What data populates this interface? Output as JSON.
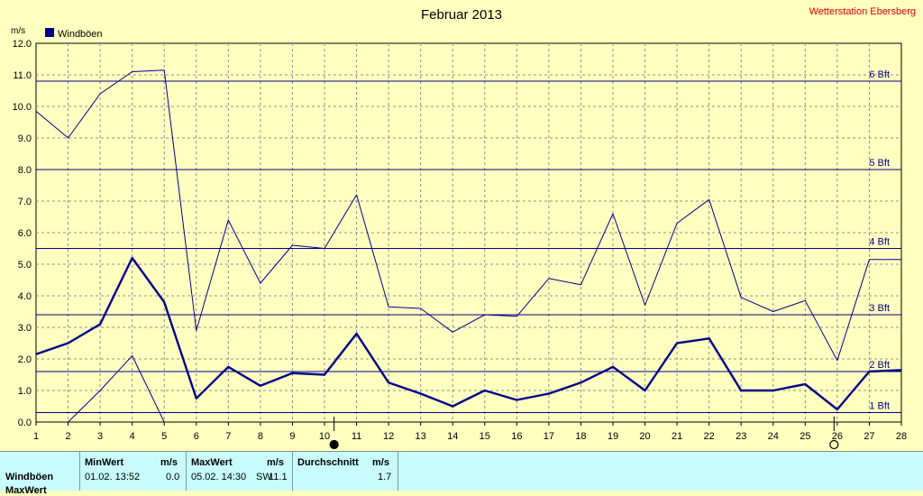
{
  "header": {
    "title": "Februar 2013",
    "station": "Wetterstation Ebersberg"
  },
  "chart_data": {
    "type": "line",
    "title": "Februar 2013",
    "ylabel": "m/s",
    "ylim": [
      0,
      12
    ],
    "y_ticks": [
      "0.0",
      "1.0",
      "2.0",
      "3.0",
      "4.0",
      "5.0",
      "6.0",
      "7.0",
      "8.0",
      "9.0",
      "10.0",
      "11.0",
      "12.0"
    ],
    "x_ticks": [
      "1",
      "2",
      "3",
      "4",
      "5",
      "6",
      "7",
      "8",
      "9",
      "10",
      "11",
      "12",
      "13",
      "14",
      "15",
      "16",
      "17",
      "18",
      "19",
      "20",
      "21",
      "22",
      "23",
      "24",
      "25",
      "26",
      "27",
      "28"
    ],
    "xlim": [
      1,
      28
    ],
    "grid": true,
    "legend": [
      {
        "name": "Windböen",
        "color": "#00008b"
      }
    ],
    "beaufort_lines": [
      {
        "label": "1 Bft",
        "value": 0.3
      },
      {
        "label": "2 Bft",
        "value": 1.6
      },
      {
        "label": "3 Bft",
        "value": 3.4
      },
      {
        "label": "4 Bft",
        "value": 5.5
      },
      {
        "label": "5 Bft",
        "value": 8.0
      },
      {
        "label": "6 Bft",
        "value": 10.8
      }
    ],
    "series": [
      {
        "name": "Windböen",
        "role": "mean",
        "x": [
          1,
          2,
          3,
          4,
          5,
          6,
          7,
          8,
          9,
          10,
          11,
          12,
          13,
          14,
          15,
          16,
          17,
          18,
          19,
          20,
          21,
          22,
          23,
          24,
          25,
          26,
          27,
          28
        ],
        "values": [
          2.15,
          2.5,
          3.1,
          5.2,
          3.8,
          0.75,
          1.75,
          1.15,
          1.55,
          1.5,
          2.8,
          1.25,
          0.9,
          0.5,
          1.0,
          0.7,
          0.9,
          1.25,
          1.75,
          1.0,
          2.5,
          2.65,
          1.0,
          1.0,
          1.2,
          0.4,
          1.6,
          1.65
        ]
      },
      {
        "role": "max",
        "x": [
          1,
          2,
          3,
          4,
          5,
          6,
          7,
          8,
          9,
          10,
          11,
          12,
          13,
          14,
          15,
          16,
          17,
          18,
          19,
          20,
          21,
          22,
          23,
          24,
          25,
          26,
          27,
          28
        ],
        "values": [
          9.85,
          9.0,
          10.4,
          11.1,
          11.15,
          2.9,
          6.4,
          4.4,
          5.6,
          5.5,
          7.2,
          3.65,
          3.6,
          2.85,
          3.4,
          3.35,
          4.55,
          4.35,
          6.6,
          3.7,
          6.3,
          7.05,
          3.95,
          3.5,
          3.85,
          1.95,
          5.15,
          5.15
        ]
      },
      {
        "role": "min",
        "x": [
          2,
          3,
          4,
          5
        ],
        "values": [
          0.0,
          1.0,
          2.1,
          0.0
        ]
      }
    ],
    "markers": [
      {
        "name": "full-moon",
        "x": 10.3
      },
      {
        "name": "new-moon",
        "x": 25.9
      }
    ]
  },
  "stats": {
    "row_label": "Windböen",
    "row2_label": "MaxWert",
    "min_header": "MinWert",
    "max_header": "MaxWert",
    "avg_header": "Durchschnitt",
    "unit": "m/s",
    "min_time": "01.02.  13:52",
    "min_value": "0.0",
    "max_time": "05.02.  14:30",
    "max_dir": "SW",
    "max_value": "11.1",
    "avg_value": "1.7"
  }
}
